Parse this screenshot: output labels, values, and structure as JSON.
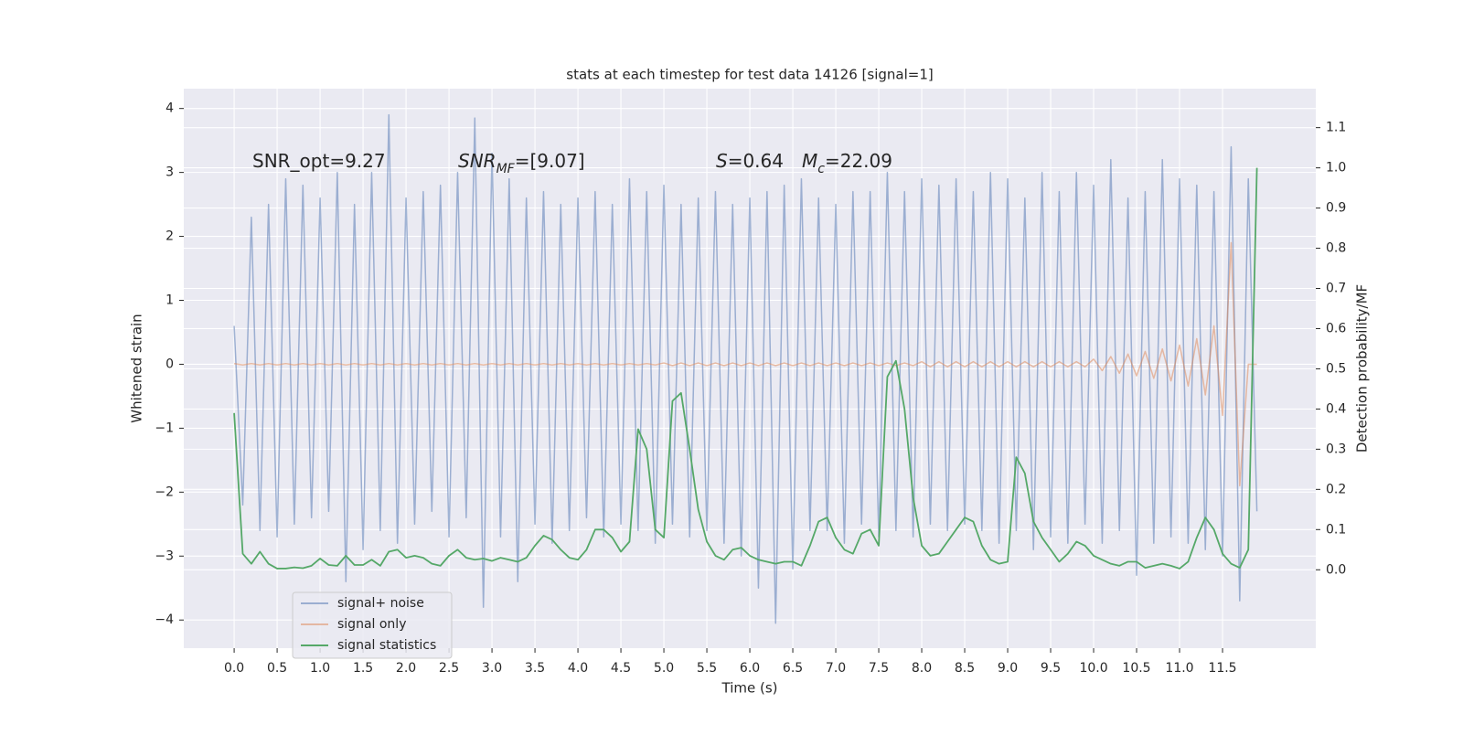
{
  "chart_data": {
    "type": "line",
    "title": "stats at each timestep for test data 14126 [signal=1]",
    "xlabel": "Time (s)",
    "ylabel": "Whitened strain",
    "y2label": "Detection probability/MF",
    "grid": true,
    "background": "#eaeaf2",
    "legend": "lower left",
    "annotations": [
      [
        {
          "text": "SNR_opt=9.27",
          "style": "normal"
        }
      ],
      [
        {
          "text": "SNR",
          "style": "italic"
        },
        {
          "text": "MF",
          "style": "sub"
        },
        {
          "text": "=[9.07]",
          "style": "normal"
        }
      ],
      [
        {
          "text": "S",
          "style": "italic"
        },
        {
          "text": "=0.64",
          "style": "normal"
        }
      ],
      [
        {
          "text": "M",
          "style": "italic"
        },
        {
          "text": "c",
          "style": "sub"
        },
        {
          "text": "=22.09",
          "style": "normal"
        }
      ]
    ],
    "xlim": [
      -0.586,
      12.585
    ],
    "ylim": [
      -4.44,
      4.31
    ],
    "y2lim": [
      -0.195,
      1.197
    ],
    "xticks": [
      {
        "value": 0,
        "label": "0.0"
      },
      0.5,
      {
        "value": 1,
        "label": "1.0"
      },
      1.5,
      {
        "value": 2,
        "label": "2.0"
      },
      2.5,
      {
        "value": 3,
        "label": "3.0"
      },
      3.5,
      {
        "value": 4,
        "label": "4.0"
      },
      4.5,
      {
        "value": 5,
        "label": "5.0"
      },
      5.5,
      {
        "value": 6,
        "label": "6.0"
      },
      6.5,
      {
        "value": 7,
        "label": "7.0"
      },
      7.5,
      {
        "value": 8,
        "label": "8.0"
      },
      8.5,
      {
        "value": 9,
        "label": "9.0"
      },
      9.5,
      {
        "value": 10,
        "label": "10.0"
      },
      10.5,
      {
        "value": 11,
        "label": "11.0"
      },
      11.5
    ],
    "yticks": [
      {
        "value": -4,
        "label": "−4"
      },
      {
        "value": -3,
        "label": "−3"
      },
      {
        "value": -2,
        "label": "−2"
      },
      {
        "value": -1,
        "label": "−1"
      },
      0,
      1,
      2,
      3,
      4
    ],
    "y2ticks": [
      {
        "value": 0,
        "label": "0.0"
      },
      0.1,
      0.2,
      0.3,
      0.4,
      0.5,
      0.6,
      0.7,
      0.8,
      0.9,
      {
        "value": 1,
        "label": "1.0"
      },
      1.1
    ],
    "x": [
      0,
      0.1,
      0.2,
      0.3,
      0.4,
      0.5,
      0.6,
      0.7,
      0.8,
      0.9,
      1,
      1.1,
      1.2,
      1.3,
      1.4,
      1.5,
      1.6,
      1.7,
      1.8,
      1.9,
      2,
      2.1,
      2.2,
      2.3,
      2.4,
      2.5,
      2.6,
      2.7,
      2.8,
      2.9,
      3,
      3.1,
      3.2,
      3.3,
      3.4,
      3.5,
      3.6,
      3.7,
      3.8,
      3.9,
      4,
      4.1,
      4.2,
      4.3,
      4.4,
      4.5,
      4.6,
      4.7,
      4.8,
      4.9,
      5,
      5.1,
      5.2,
      5.3,
      5.4,
      5.5,
      5.6,
      5.7,
      5.8,
      5.9,
      6,
      6.1,
      6.2,
      6.3,
      6.4,
      6.5,
      6.6,
      6.7,
      6.8,
      6.9,
      7,
      7.1,
      7.2,
      7.3,
      7.4,
      7.5,
      7.6,
      7.7,
      7.8,
      7.9,
      8,
      8.1,
      8.2,
      8.3,
      8.4,
      8.5,
      8.6,
      8.7,
      8.8,
      8.9,
      9,
      9.1,
      9.2,
      9.3,
      9.4,
      9.5,
      9.6,
      9.7,
      9.8,
      9.9,
      10,
      10.1,
      10.2,
      10.3,
      10.4,
      10.5,
      10.6,
      10.7,
      10.8,
      10.9,
      11,
      11.1,
      11.2,
      11.3,
      11.4,
      11.5,
      11.6,
      11.7,
      11.8,
      11.9
    ],
    "series": [
      {
        "name": "signal+ noise",
        "color": "#4c72b0",
        "alpha": 0.5,
        "axis": "y",
        "values": [
          0.6,
          -2.2,
          2.3,
          -2.6,
          2.5,
          -2.7,
          2.9,
          -2.5,
          2.8,
          -2.4,
          2.6,
          -2.3,
          3.0,
          -3.4,
          2.5,
          -2.9,
          3.0,
          -2.6,
          3.9,
          -2.8,
          2.6,
          -2.5,
          2.7,
          -2.3,
          2.8,
          -2.7,
          3.0,
          -2.4,
          3.85,
          -3.8,
          3.3,
          -2.7,
          2.9,
          -3.4,
          2.6,
          -2.5,
          2.7,
          -2.8,
          2.5,
          -2.6,
          2.6,
          -2.4,
          2.7,
          -2.7,
          2.5,
          -2.5,
          2.9,
          -2.6,
          2.7,
          -2.8,
          2.8,
          -2.5,
          2.5,
          -2.7,
          2.6,
          -2.6,
          2.7,
          -2.8,
          2.5,
          -3.0,
          2.6,
          -3.5,
          2.7,
          -4.05,
          2.8,
          -3.2,
          2.9,
          -2.6,
          2.6,
          -2.6,
          2.5,
          -2.8,
          2.7,
          -2.5,
          2.7,
          -2.7,
          3.0,
          -2.6,
          2.7,
          -2.7,
          2.9,
          -2.5,
          2.8,
          -2.6,
          2.9,
          -2.5,
          2.7,
          -2.6,
          3.0,
          -2.8,
          2.9,
          -2.6,
          2.6,
          -2.9,
          3.0,
          -2.7,
          2.7,
          -2.8,
          3.0,
          -2.5,
          2.8,
          -2.8,
          3.2,
          -2.6,
          2.6,
          -3.3,
          2.7,
          -2.8,
          3.2,
          -2.7,
          2.9,
          -2.8,
          2.8,
          -2.9,
          2.7,
          -3.0,
          3.4,
          -3.7,
          2.9,
          -2.3
        ]
      },
      {
        "name": "signal only",
        "color": "#dd8452",
        "alpha": 0.5,
        "axis": "y",
        "values": [
          0.01,
          -0.01,
          0.01,
          -0.01,
          0.01,
          -0.01,
          0.01,
          -0.01,
          0.01,
          -0.01,
          0.01,
          -0.01,
          0.01,
          -0.01,
          0.01,
          -0.01,
          0.01,
          -0.01,
          0.01,
          -0.01,
          0.01,
          -0.01,
          0.01,
          -0.01,
          0.01,
          -0.01,
          0.01,
          -0.01,
          0.01,
          -0.01,
          0.01,
          -0.01,
          0.01,
          -0.01,
          0.01,
          -0.01,
          0.01,
          -0.01,
          0.01,
          -0.01,
          0.01,
          -0.01,
          0.01,
          -0.01,
          0.01,
          -0.01,
          0.01,
          -0.01,
          0.01,
          -0.01,
          0.02,
          -0.02,
          0.02,
          -0.02,
          0.02,
          -0.02,
          0.02,
          -0.02,
          0.02,
          -0.02,
          0.02,
          -0.02,
          0.02,
          -0.02,
          0.02,
          -0.02,
          0.02,
          -0.02,
          0.02,
          -0.02,
          0.02,
          -0.02,
          0.02,
          -0.02,
          0.02,
          -0.02,
          0.02,
          -0.02,
          0.02,
          -0.02,
          0.04,
          -0.04,
          0.04,
          -0.04,
          0.04,
          -0.04,
          0.04,
          -0.04,
          0.04,
          -0.04,
          0.04,
          -0.04,
          0.04,
          -0.04,
          0.04,
          -0.04,
          0.04,
          -0.04,
          0.04,
          -0.04,
          0.08,
          -0.1,
          0.12,
          -0.14,
          0.16,
          -0.18,
          0.2,
          -0.22,
          0.24,
          -0.26,
          0.3,
          -0.34,
          0.4,
          -0.48,
          0.6,
          -0.8,
          1.9,
          -1.9,
          0,
          0
        ]
      },
      {
        "name": "signal statistics",
        "color": "#55a868",
        "alpha": 1,
        "axis": "y2",
        "values": [
          0.39,
          0.04,
          0.015,
          0.045,
          0.015,
          0.003,
          0.003,
          0.006,
          0.004,
          0.01,
          0.028,
          0.012,
          0.01,
          0.035,
          0.012,
          0.012,
          0.025,
          0.01,
          0.045,
          0.05,
          0.03,
          0.035,
          0.03,
          0.015,
          0.01,
          0.035,
          0.05,
          0.03,
          0.025,
          0.028,
          0.022,
          0.03,
          0.025,
          0.02,
          0.03,
          0.06,
          0.085,
          0.075,
          0.05,
          0.03,
          0.025,
          0.05,
          0.1,
          0.1,
          0.08,
          0.045,
          0.07,
          0.35,
          0.3,
          0.1,
          0.08,
          0.42,
          0.44,
          0.3,
          0.15,
          0.07,
          0.035,
          0.025,
          0.05,
          0.055,
          0.035,
          0.025,
          0.02,
          0.015,
          0.02,
          0.02,
          0.01,
          0.06,
          0.12,
          0.13,
          0.08,
          0.05,
          0.04,
          0.09,
          0.1,
          0.06,
          0.48,
          0.52,
          0.4,
          0.18,
          0.06,
          0.035,
          0.04,
          0.07,
          0.1,
          0.13,
          0.12,
          0.06,
          0.025,
          0.015,
          0.02,
          0.28,
          0.24,
          0.12,
          0.08,
          0.05,
          0.02,
          0.04,
          0.07,
          0.06,
          0.035,
          0.025,
          0.015,
          0.01,
          0.02,
          0.02,
          0.005,
          0.01,
          0.015,
          0.01,
          0.003,
          0.02,
          0.08,
          0.13,
          0.1,
          0.04,
          0.015,
          0.005,
          0.05,
          1.0
        ]
      }
    ]
  }
}
